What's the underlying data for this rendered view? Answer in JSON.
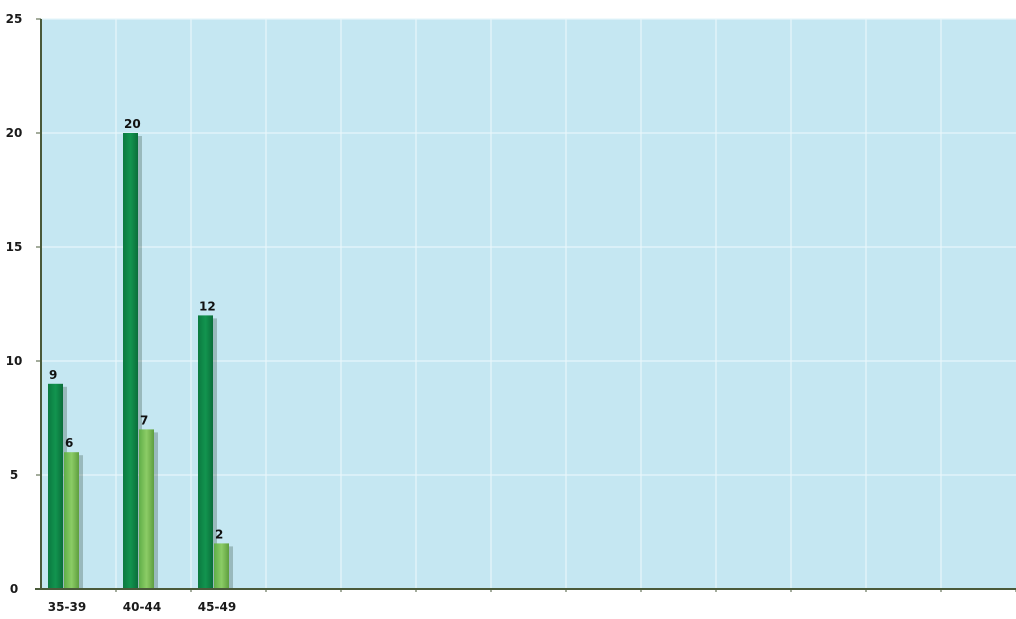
{
  "chart_data": {
    "type": "bar",
    "categories": [
      "35-39",
      "40-44",
      "45-49"
    ],
    "series": [
      {
        "values": [
          9,
          20,
          12
        ],
        "color": "#0e8a4a"
      },
      {
        "values": [
          6,
          7,
          2
        ],
        "color": "#7cc45c"
      }
    ],
    "ylim": [
      0,
      25
    ],
    "yticks": [
      0,
      5,
      10,
      15,
      20,
      25
    ],
    "x_slot_count": 13,
    "grid": true,
    "plot_background": "#c5e7f2",
    "grid_color": "#e8f6fb",
    "axis_color": "#4a5a3a",
    "title": "",
    "xlabel": "",
    "ylabel": ""
  }
}
